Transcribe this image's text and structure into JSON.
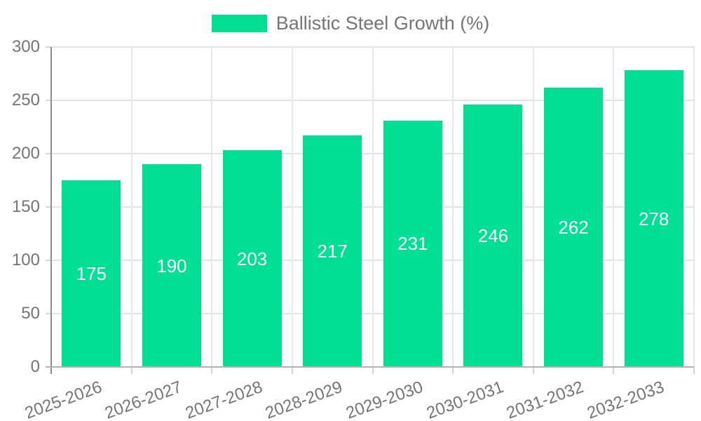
{
  "chart_data": {
    "type": "bar",
    "title": "",
    "legend": [
      "Ballistic Steel Growth (%)"
    ],
    "legend_position": "top",
    "categories": [
      "2025-2026",
      "2026-2027",
      "2027-2028",
      "2028-2029",
      "2029-2030",
      "2030-2031",
      "2031-2032",
      "2032-2033"
    ],
    "series": [
      {
        "name": "Ballistic Steel Growth (%)",
        "values": [
          175,
          190,
          203,
          217,
          231,
          246,
          262,
          278
        ]
      }
    ],
    "value_labels_shown": true,
    "value_label_position": "inside-center",
    "xlabel": "",
    "ylabel": "",
    "ylim": [
      0,
      300
    ],
    "yticks": [
      0,
      50,
      100,
      150,
      200,
      250,
      300
    ],
    "grid": true,
    "x_label_rotation_deg": -20
  },
  "colors": {
    "bar": "#00df94",
    "grid_h": "#e4e4e4",
    "grid_v": "#e8e8e8",
    "y_axis_line": "#8c8c8c",
    "x_axis_line": "#b3b3b3",
    "tick": "#d6d6d6",
    "axis_text": "#757575",
    "value_label_text": "#ffffff",
    "background": "#ffffff"
  }
}
